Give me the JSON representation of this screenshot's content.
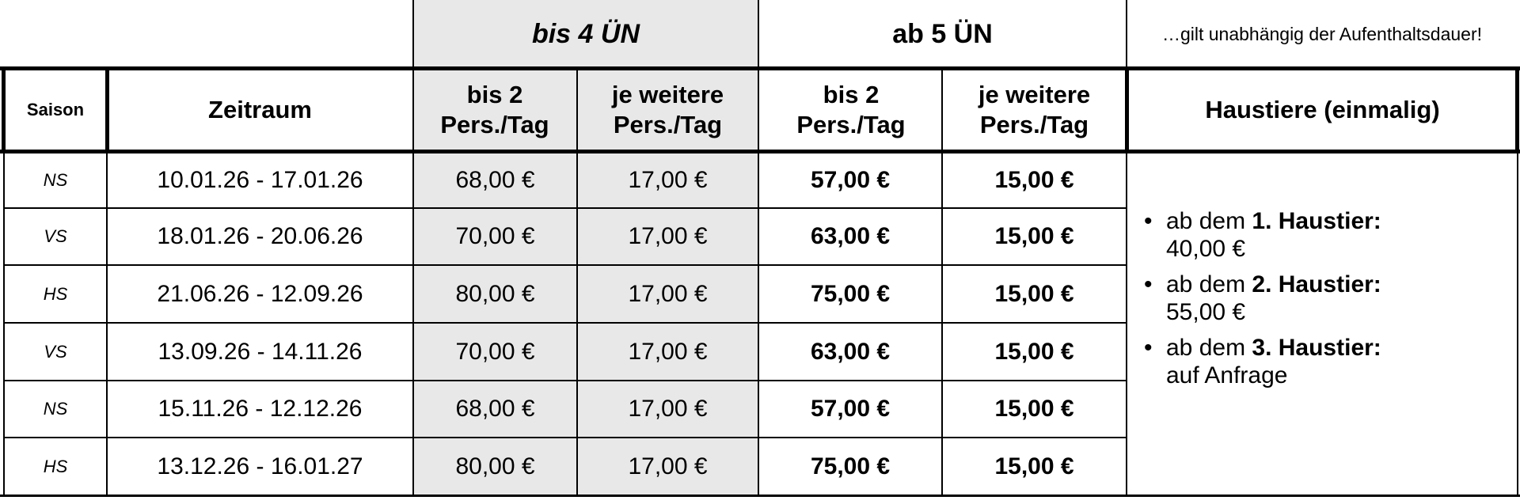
{
  "top_header": {
    "short_stay": "bis 4 ÜN",
    "long_stay": "ab 5 ÜN",
    "note": "…gilt unabhängig der Aufenthaltsdauer!"
  },
  "columns": {
    "season": "Saison",
    "period": "Zeitraum",
    "short_base": "bis 2 Pers./Tag",
    "short_extra": "je weitere Pers./Tag",
    "long_base": "bis 2 Pers./Tag",
    "long_extra": "je weitere Pers./Tag",
    "pets": "Haustiere (einmalig)"
  },
  "rows": [
    {
      "season": "NS",
      "period": "10.01.26 - 17.01.26",
      "short_base": "68,00 €",
      "short_extra": "17,00 €",
      "long_base": "57,00 €",
      "long_extra": "15,00 €"
    },
    {
      "season": "VS",
      "period": "18.01.26 - 20.06.26",
      "short_base": "70,00 €",
      "short_extra": "17,00 €",
      "long_base": "63,00 €",
      "long_extra": "15,00 €"
    },
    {
      "season": "HS",
      "period": "21.06.26 - 12.09.26",
      "short_base": "80,00 €",
      "short_extra": "17,00 €",
      "long_base": "75,00 €",
      "long_extra": "15,00 €"
    },
    {
      "season": "VS",
      "period": "13.09.26 - 14.11.26",
      "short_base": "70,00 €",
      "short_extra": "17,00 €",
      "long_base": "63,00 €",
      "long_extra": "15,00 €"
    },
    {
      "season": "NS",
      "period": "15.11.26 - 12.12.26",
      "short_base": "68,00 €",
      "short_extra": "17,00 €",
      "long_base": "57,00 €",
      "long_extra": "15,00 €"
    },
    {
      "season": "HS",
      "period": "13.12.26 - 16.01.27",
      "short_base": "80,00 €",
      "short_extra": "17,00 €",
      "long_base": "75,00 €",
      "long_extra": "15,00 €"
    }
  ],
  "pets": [
    {
      "prefix": "ab dem ",
      "label": "1. Haustier:",
      "price": "40,00 €"
    },
    {
      "prefix": "ab dem ",
      "label": "2. Haustier:",
      "price": "55,00 €"
    },
    {
      "prefix": "ab dem ",
      "label": "3. Haustier:",
      "price": "auf Anfrage"
    }
  ]
}
